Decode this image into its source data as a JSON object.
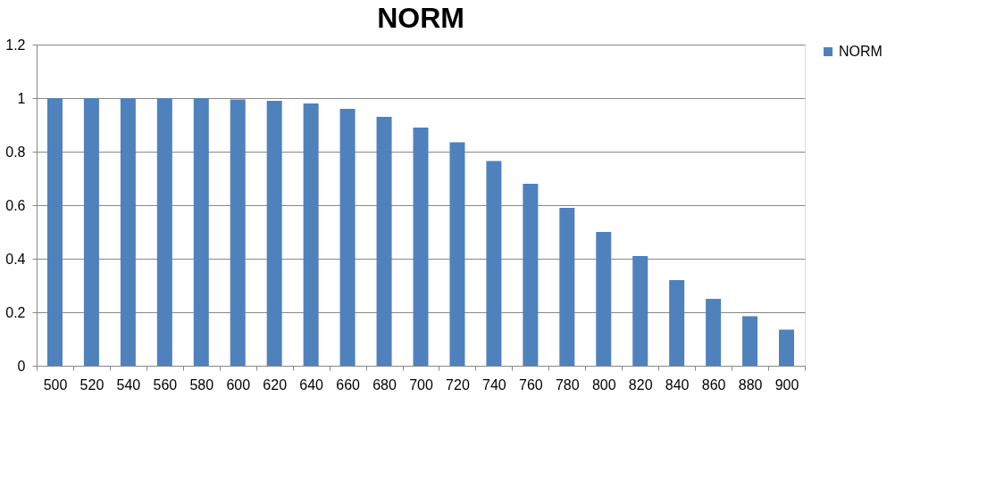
{
  "chart_data": {
    "type": "bar",
    "title": "NORM",
    "categories": [
      "500",
      "520",
      "540",
      "560",
      "580",
      "600",
      "620",
      "640",
      "660",
      "680",
      "700",
      "720",
      "740",
      "760",
      "780",
      "800",
      "820",
      "840",
      "860",
      "880",
      "900"
    ],
    "series": [
      {
        "name": "NORM",
        "color": "#4f81bd",
        "values": [
          1.0,
          1.0,
          1.0,
          1.0,
          1.0,
          0.995,
          0.99,
          0.98,
          0.96,
          0.93,
          0.89,
          0.835,
          0.765,
          0.68,
          0.59,
          0.5,
          0.41,
          0.32,
          0.25,
          0.185,
          0.135
        ]
      }
    ],
    "ylim": [
      0,
      1.2
    ],
    "yticks": [
      0,
      0.2,
      0.4,
      0.6,
      0.8,
      1,
      1.2
    ],
    "grid": "y",
    "legend": "right"
  }
}
